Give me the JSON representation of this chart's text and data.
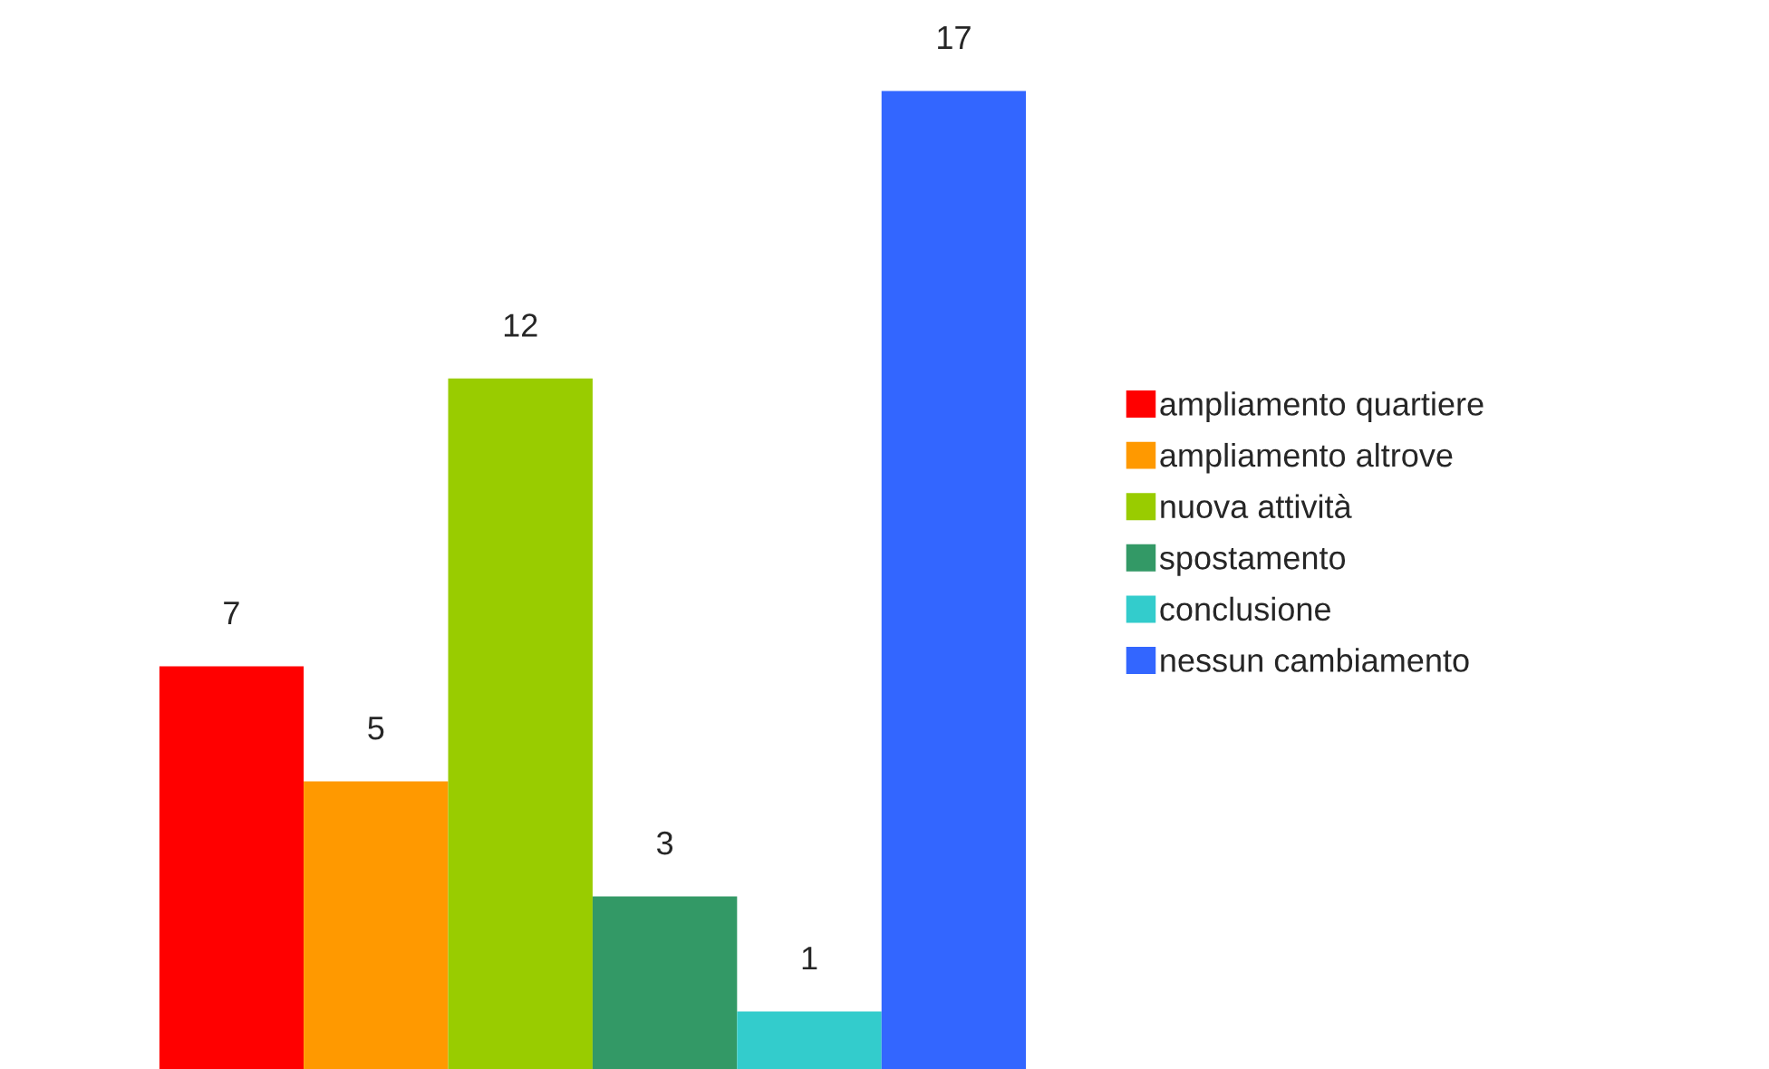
{
  "chart_data": {
    "type": "bar",
    "categories": [
      null
    ],
    "series": [
      {
        "name": "ampliamento quartiere",
        "color": "#ff0000",
        "values": [
          7
        ]
      },
      {
        "name": "ampliamento altrove",
        "color": "#ff9900",
        "values": [
          5
        ]
      },
      {
        "name": "nuova attività",
        "color": "#99cc00",
        "values": [
          12
        ]
      },
      {
        "name": "spostamento",
        "color": "#339966",
        "values": [
          3
        ]
      },
      {
        "name": "conclusione",
        "color": "#33cccc",
        "values": [
          1
        ]
      },
      {
        "name": "nessun cambiamento",
        "color": "#3366ff",
        "values": [
          17
        ]
      }
    ],
    "data_labels": true,
    "grid": false,
    "legend": "right"
  }
}
